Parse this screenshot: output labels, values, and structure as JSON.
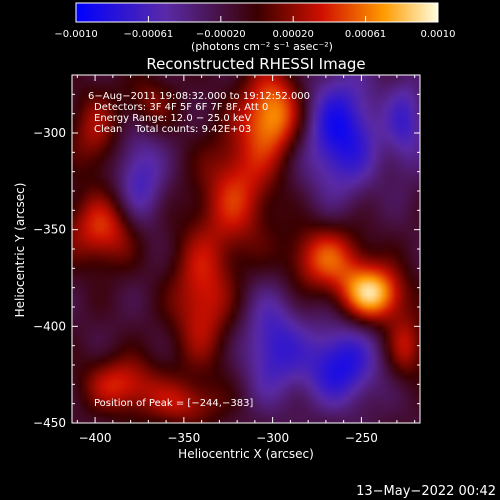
{
  "colorbar": {
    "tick_labels": [
      "−0.0010",
      "−0.00061",
      "−0.00020",
      "0.00020",
      "0.00061",
      "0.0010"
    ],
    "range": [
      -0.001,
      0.001
    ],
    "units_label": "(photons cm⁻² s⁻¹ asec⁻²)"
  },
  "chart_data": {
    "type": "heatmap",
    "title": "Reconstructed RHESSI Image",
    "xlabel": "Heliocentric X (arcsec)",
    "ylabel": "Heliocentric Y (arcsec)",
    "xlim": [
      -413,
      -217
    ],
    "ylim": [
      -450,
      -270
    ],
    "x_ticks": [
      -400,
      -350,
      -300,
      -250
    ],
    "y_ticks": [
      -300,
      -350,
      -400,
      -450
    ],
    "x_tick_labels": [
      "−400",
      "−350",
      "−300",
      "−250"
    ],
    "y_tick_labels": [
      "−300",
      "−350",
      "−400",
      "−450"
    ],
    "annotations": [
      "6−Aug−2011 19:08:32.000 to 19:12:52.000",
      "Detectors: 3F 4F 5F 6F 7F 8F, Att 0",
      "Energy Range: 12.0 − 25.0 keV",
      "Clean    Total counts: 9.42E+03"
    ],
    "peak_label": "Position of Peak = [−244,−383]",
    "peak": [
      -244,
      -383
    ],
    "blobs": [
      {
        "x": -244,
        "y": -383,
        "amp": 1.0,
        "sx": 12,
        "sy": 10
      },
      {
        "x": -300,
        "y": -290,
        "amp": 0.85,
        "sx": 12,
        "sy": 16
      },
      {
        "x": -270,
        "y": -365,
        "amp": 0.65,
        "sx": 15,
        "sy": 12
      },
      {
        "x": -320,
        "y": -330,
        "amp": 0.55,
        "sx": 14,
        "sy": 22
      },
      {
        "x": -340,
        "y": -385,
        "amp": 0.55,
        "sx": 12,
        "sy": 25
      },
      {
        "x": -395,
        "y": -350,
        "amp": 0.6,
        "sx": 15,
        "sy": 13
      },
      {
        "x": -400,
        "y": -300,
        "amp": 0.4,
        "sx": 10,
        "sy": 15
      },
      {
        "x": -385,
        "y": -430,
        "amp": 0.55,
        "sx": 15,
        "sy": 10
      },
      {
        "x": -370,
        "y": -285,
        "amp": 0.35,
        "sx": 10,
        "sy": 10
      },
      {
        "x": -225,
        "y": -410,
        "amp": 0.45,
        "sx": 8,
        "sy": 12
      },
      {
        "x": -350,
        "y": -440,
        "amp": 0.4,
        "sx": 15,
        "sy": 8
      }
    ],
    "negative_regions": [
      {
        "x": -262,
        "y": -300,
        "amp": -0.75,
        "sx": 15,
        "sy": 22
      },
      {
        "x": -262,
        "y": -420,
        "amp": -0.7,
        "sx": 15,
        "sy": 15
      },
      {
        "x": -375,
        "y": -325,
        "amp": -0.5,
        "sx": 10,
        "sy": 20
      },
      {
        "x": -300,
        "y": -410,
        "amp": -0.55,
        "sx": 12,
        "sy": 20
      },
      {
        "x": -225,
        "y": -295,
        "amp": -0.45,
        "sx": 8,
        "sy": 18
      }
    ]
  },
  "footer": {
    "timestamp": "13−May−2022 00:42"
  }
}
